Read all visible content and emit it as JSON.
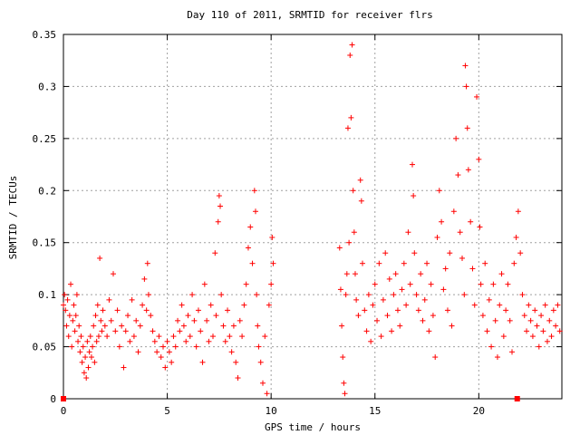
{
  "chart_data": {
    "type": "scatter",
    "title": "Day 110 of 2011, SRMTID for receiver flrs",
    "xlabel": "GPS time / hours",
    "ylabel": "SRMTID / TECUs",
    "xlim": [
      0,
      24
    ],
    "ylim": [
      0,
      0.35
    ],
    "x_ticks": [
      0,
      5,
      10,
      15,
      20
    ],
    "x_tick_labels": [
      "0",
      "5",
      "10",
      "15",
      "20"
    ],
    "y_ticks": [
      0,
      0.05,
      0.1,
      0.15,
      0.2,
      0.25,
      0.3,
      0.35
    ],
    "y_tick_labels": [
      "0",
      "0.05",
      "0.1",
      "0.15",
      "0.2",
      "0.25",
      "0.3",
      "0.35"
    ],
    "grid": true,
    "marker": "+",
    "color": "#ff0000",
    "series": [
      {
        "values": [
          [
            0.0,
            0.09
          ],
          [
            0.05,
            0.1
          ],
          [
            0.1,
            0.085
          ],
          [
            0.15,
            0.07
          ],
          [
            0.2,
            0.095
          ],
          [
            0.25,
            0.06
          ],
          [
            0.3,
            0.08
          ],
          [
            0.35,
            0.11
          ],
          [
            0.4,
            0.05
          ],
          [
            0.45,
            0.075
          ],
          [
            0.5,
            0.09
          ],
          [
            0.55,
            0.065
          ],
          [
            0.6,
            0.08
          ],
          [
            0.65,
            0.1
          ],
          [
            0.7,
            0.055
          ],
          [
            0.75,
            0.07
          ],
          [
            0.8,
            0.045
          ],
          [
            0.85,
            0.06
          ],
          [
            0.9,
            0.035
          ],
          [
            0.95,
            0.05
          ],
          [
            1.0,
            0.025
          ],
          [
            1.05,
            0.04
          ],
          [
            1.1,
            0.02
          ],
          [
            1.15,
            0.055
          ],
          [
            1.2,
            0.03
          ],
          [
            1.25,
            0.045
          ],
          [
            1.3,
            0.06
          ],
          [
            1.35,
            0.04
          ],
          [
            1.4,
            0.05
          ],
          [
            1.45,
            0.07
          ],
          [
            1.5,
            0.035
          ],
          [
            1.55,
            0.08
          ],
          [
            1.6,
            0.055
          ],
          [
            1.65,
            0.09
          ],
          [
            1.7,
            0.06
          ],
          [
            1.75,
            0.135
          ],
          [
            1.8,
            0.075
          ],
          [
            1.85,
            0.065
          ],
          [
            1.9,
            0.085
          ],
          [
            2.0,
            0.07
          ],
          [
            2.1,
            0.06
          ],
          [
            2.2,
            0.095
          ],
          [
            2.3,
            0.075
          ],
          [
            2.4,
            0.12
          ],
          [
            2.5,
            0.065
          ],
          [
            2.6,
            0.085
          ],
          [
            2.7,
            0.05
          ],
          [
            2.8,
            0.07
          ],
          [
            2.9,
            0.03
          ],
          [
            3.0,
            0.065
          ],
          [
            3.1,
            0.08
          ],
          [
            3.2,
            0.055
          ],
          [
            3.3,
            0.095
          ],
          [
            3.4,
            0.06
          ],
          [
            3.5,
            0.075
          ],
          [
            3.6,
            0.045
          ],
          [
            3.7,
            0.07
          ],
          [
            3.8,
            0.09
          ],
          [
            3.9,
            0.115
          ],
          [
            4.0,
            0.085
          ],
          [
            4.05,
            0.13
          ],
          [
            4.1,
            0.1
          ],
          [
            4.2,
            0.08
          ],
          [
            4.3,
            0.065
          ],
          [
            4.4,
            0.055
          ],
          [
            4.5,
            0.045
          ],
          [
            4.6,
            0.06
          ],
          [
            4.7,
            0.04
          ],
          [
            4.8,
            0.05
          ],
          [
            4.9,
            0.03
          ],
          [
            5.0,
            0.055
          ],
          [
            5.1,
            0.045
          ],
          [
            5.2,
            0.035
          ],
          [
            5.3,
            0.06
          ],
          [
            5.4,
            0.05
          ],
          [
            5.5,
            0.075
          ],
          [
            5.6,
            0.065
          ],
          [
            5.7,
            0.09
          ],
          [
            5.8,
            0.07
          ],
          [
            5.9,
            0.055
          ],
          [
            6.0,
            0.08
          ],
          [
            6.1,
            0.06
          ],
          [
            6.2,
            0.1
          ],
          [
            6.3,
            0.075
          ],
          [
            6.4,
            0.05
          ],
          [
            6.5,
            0.085
          ],
          [
            6.6,
            0.065
          ],
          [
            6.7,
            0.035
          ],
          [
            6.8,
            0.11
          ],
          [
            6.9,
            0.075
          ],
          [
            7.0,
            0.055
          ],
          [
            7.1,
            0.09
          ],
          [
            7.2,
            0.06
          ],
          [
            7.3,
            0.14
          ],
          [
            7.35,
            0.08
          ],
          [
            7.45,
            0.17
          ],
          [
            7.5,
            0.195
          ],
          [
            7.55,
            0.185
          ],
          [
            7.6,
            0.1
          ],
          [
            7.7,
            0.07
          ],
          [
            7.8,
            0.055
          ],
          [
            7.9,
            0.085
          ],
          [
            8.0,
            0.06
          ],
          [
            8.1,
            0.045
          ],
          [
            8.2,
            0.07
          ],
          [
            8.3,
            0.035
          ],
          [
            8.4,
            0.02
          ],
          [
            8.5,
            0.075
          ],
          [
            8.6,
            0.06
          ],
          [
            8.7,
            0.09
          ],
          [
            8.8,
            0.11
          ],
          [
            8.9,
            0.145
          ],
          [
            9.0,
            0.165
          ],
          [
            9.1,
            0.13
          ],
          [
            9.2,
            0.2
          ],
          [
            9.25,
            0.18
          ],
          [
            9.3,
            0.1
          ],
          [
            9.35,
            0.07
          ],
          [
            9.4,
            0.05
          ],
          [
            9.5,
            0.035
          ],
          [
            9.6,
            0.015
          ],
          [
            9.7,
            0.06
          ],
          [
            9.8,
            0.005
          ],
          [
            9.9,
            0.09
          ],
          [
            10.0,
            0.11
          ],
          [
            10.05,
            0.155
          ],
          [
            10.1,
            0.13
          ],
          [
            13.3,
            0.145
          ],
          [
            13.35,
            0.105
          ],
          [
            13.4,
            0.07
          ],
          [
            13.45,
            0.04
          ],
          [
            13.5,
            0.015
          ],
          [
            13.55,
            0.005
          ],
          [
            13.6,
            0.1
          ],
          [
            13.65,
            0.12
          ],
          [
            13.7,
            0.26
          ],
          [
            13.75,
            0.15
          ],
          [
            13.8,
            0.33
          ],
          [
            13.85,
            0.27
          ],
          [
            13.9,
            0.34
          ],
          [
            13.95,
            0.2
          ],
          [
            14.0,
            0.16
          ],
          [
            14.05,
            0.12
          ],
          [
            14.1,
            0.095
          ],
          [
            14.2,
            0.08
          ],
          [
            14.3,
            0.21
          ],
          [
            14.35,
            0.19
          ],
          [
            14.4,
            0.13
          ],
          [
            14.5,
            0.085
          ],
          [
            14.6,
            0.065
          ],
          [
            14.7,
            0.1
          ],
          [
            14.8,
            0.055
          ],
          [
            14.9,
            0.09
          ],
          [
            15.0,
            0.11
          ],
          [
            15.1,
            0.075
          ],
          [
            15.2,
            0.13
          ],
          [
            15.3,
            0.06
          ],
          [
            15.4,
            0.095
          ],
          [
            15.5,
            0.14
          ],
          [
            15.6,
            0.08
          ],
          [
            15.7,
            0.115
          ],
          [
            15.8,
            0.065
          ],
          [
            15.9,
            0.1
          ],
          [
            16.0,
            0.12
          ],
          [
            16.1,
            0.085
          ],
          [
            16.2,
            0.07
          ],
          [
            16.3,
            0.105
          ],
          [
            16.4,
            0.13
          ],
          [
            16.5,
            0.09
          ],
          [
            16.6,
            0.16
          ],
          [
            16.7,
            0.11
          ],
          [
            16.8,
            0.225
          ],
          [
            16.85,
            0.195
          ],
          [
            16.9,
            0.14
          ],
          [
            17.0,
            0.1
          ],
          [
            17.1,
            0.085
          ],
          [
            17.2,
            0.12
          ],
          [
            17.3,
            0.075
          ],
          [
            17.4,
            0.095
          ],
          [
            17.5,
            0.13
          ],
          [
            17.6,
            0.065
          ],
          [
            17.7,
            0.11
          ],
          [
            17.8,
            0.08
          ],
          [
            17.9,
            0.04
          ],
          [
            18.0,
            0.155
          ],
          [
            18.1,
            0.2
          ],
          [
            18.2,
            0.17
          ],
          [
            18.3,
            0.105
          ],
          [
            18.4,
            0.125
          ],
          [
            18.5,
            0.085
          ],
          [
            18.6,
            0.14
          ],
          [
            18.7,
            0.07
          ],
          [
            18.8,
            0.18
          ],
          [
            18.9,
            0.25
          ],
          [
            19.0,
            0.215
          ],
          [
            19.1,
            0.16
          ],
          [
            19.2,
            0.135
          ],
          [
            19.3,
            0.1
          ],
          [
            19.35,
            0.32
          ],
          [
            19.4,
            0.3
          ],
          [
            19.45,
            0.26
          ],
          [
            19.5,
            0.22
          ],
          [
            19.6,
            0.17
          ],
          [
            19.7,
            0.125
          ],
          [
            19.8,
            0.09
          ],
          [
            19.9,
            0.29
          ],
          [
            20.0,
            0.23
          ],
          [
            20.05,
            0.165
          ],
          [
            20.1,
            0.11
          ],
          [
            20.2,
            0.08
          ],
          [
            20.3,
            0.13
          ],
          [
            20.4,
            0.065
          ],
          [
            20.5,
            0.095
          ],
          [
            20.6,
            0.05
          ],
          [
            20.7,
            0.11
          ],
          [
            20.8,
            0.075
          ],
          [
            20.9,
            0.04
          ],
          [
            21.0,
            0.09
          ],
          [
            21.1,
            0.12
          ],
          [
            21.2,
            0.06
          ],
          [
            21.3,
            0.085
          ],
          [
            21.4,
            0.11
          ],
          [
            21.5,
            0.075
          ],
          [
            21.6,
            0.045
          ],
          [
            21.7,
            0.13
          ],
          [
            21.8,
            0.155
          ],
          [
            21.9,
            0.18
          ],
          [
            22.0,
            0.14
          ],
          [
            22.1,
            0.1
          ],
          [
            22.2,
            0.08
          ],
          [
            22.3,
            0.065
          ],
          [
            22.4,
            0.09
          ],
          [
            22.5,
            0.075
          ],
          [
            22.6,
            0.06
          ],
          [
            22.7,
            0.085
          ],
          [
            22.8,
            0.07
          ],
          [
            22.9,
            0.05
          ],
          [
            23.0,
            0.08
          ],
          [
            23.1,
            0.065
          ],
          [
            23.2,
            0.09
          ],
          [
            23.3,
            0.055
          ],
          [
            23.4,
            0.075
          ],
          [
            23.5,
            0.06
          ],
          [
            23.6,
            0.085
          ],
          [
            23.7,
            0.07
          ],
          [
            23.8,
            0.09
          ],
          [
            23.9,
            0.065
          ]
        ]
      }
    ],
    "markers_on_axis": [
      {
        "x": 0.0,
        "y": 0.0
      },
      {
        "x": 21.85,
        "y": 0.0
      }
    ]
  }
}
